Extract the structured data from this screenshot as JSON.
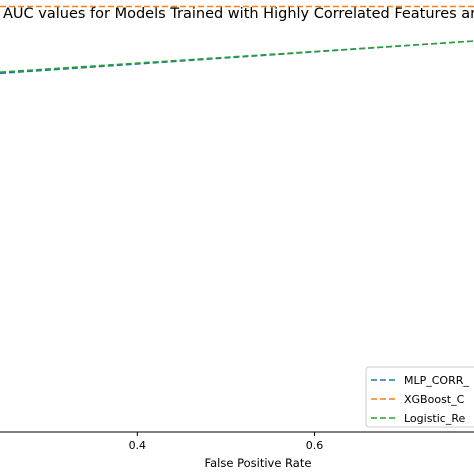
{
  "chart_data": {
    "type": "line",
    "title": "AUC values for Models Trained with Highly Correlated Features ar",
    "xlabel": "False Positive Rate",
    "ylabel": "",
    "x_ticks": [
      0.4,
      0.6
    ],
    "x_tick_labels": [
      "0.4",
      "0.6"
    ],
    "xlim": [
      0.245,
      0.78
    ],
    "ylim": [
      0.0,
      1.0
    ],
    "grid": false,
    "legend_placement": "bottom-right",
    "series": [
      {
        "name": "MLP_CORR_",
        "color": "#1f77b4",
        "x": [
          0.245,
          0.78
        ],
        "y": [
          0.83,
          0.905
        ]
      },
      {
        "name": "XGBoost_C",
        "color": "#ff7f0e",
        "x": [
          0.245,
          0.78
        ],
        "y": [
          0.985,
          0.985
        ]
      },
      {
        "name": "Logistic_Re",
        "color": "#2ca02c",
        "x": [
          0.245,
          0.78
        ],
        "y": [
          0.833,
          0.905
        ]
      }
    ]
  }
}
